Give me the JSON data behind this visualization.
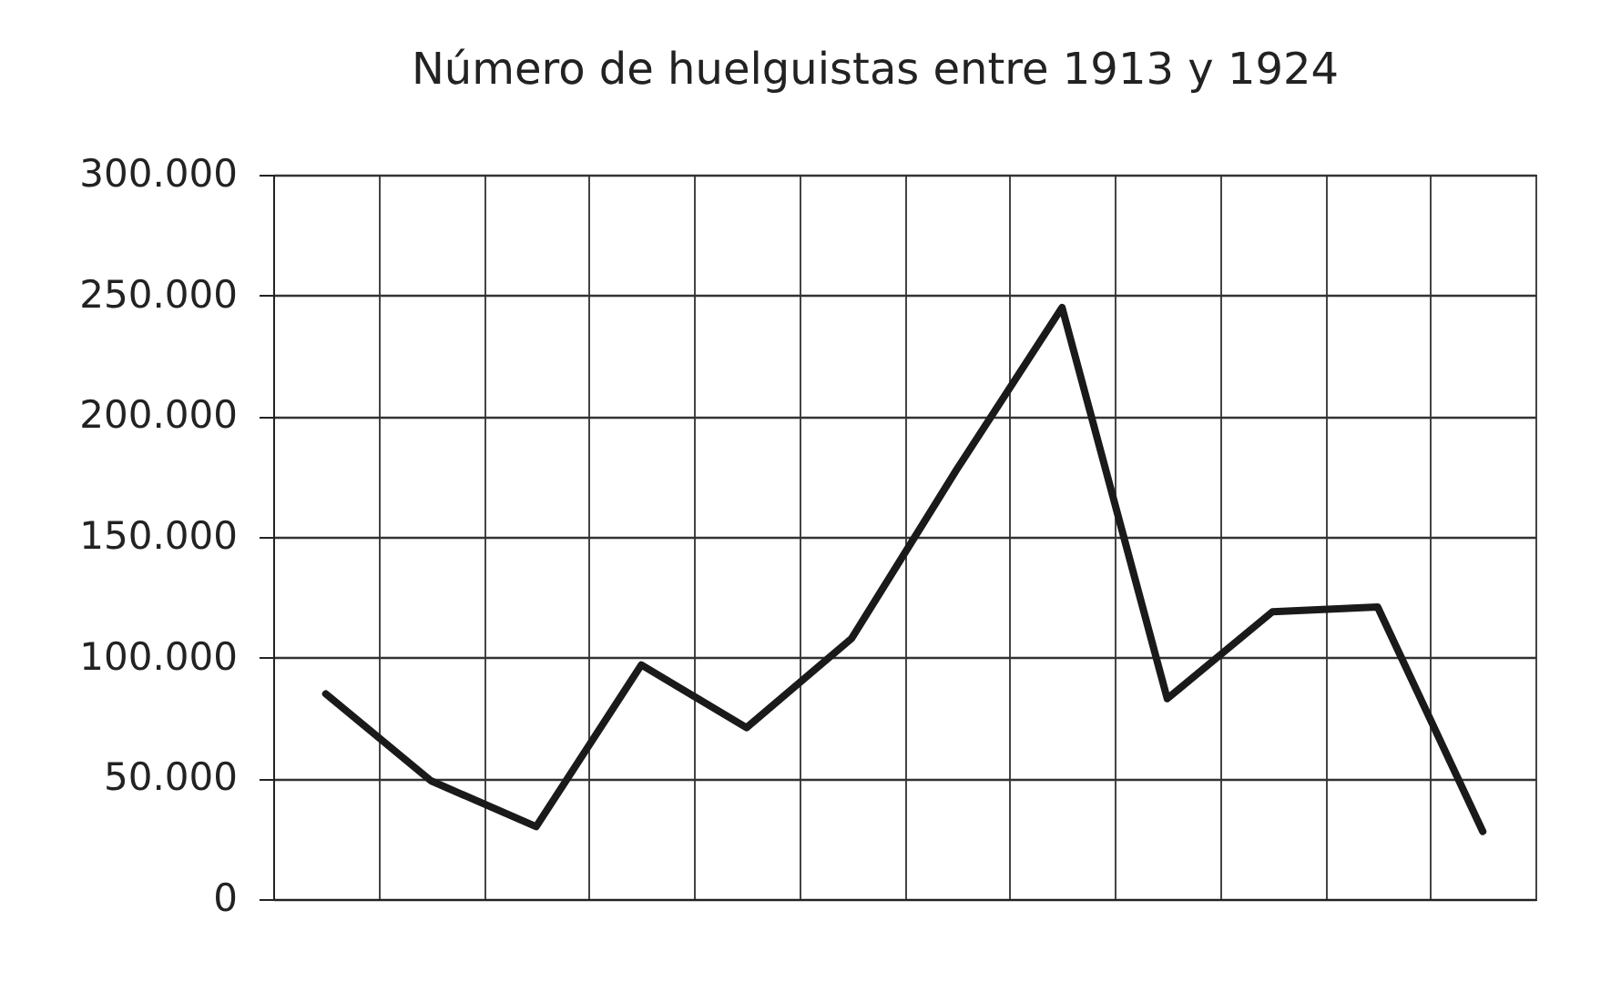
{
  "chart_data": {
    "type": "line",
    "title": "Número de huelguistas entre 1913 y 1924",
    "categories": [
      null,
      null,
      null,
      null,
      null,
      null,
      null,
      null,
      null,
      null,
      null,
      null
    ],
    "series": [
      {
        "color": "#1a1a1a",
        "values": [
          85000,
          49000,
          30000,
          97000,
          71000,
          108000,
          178000,
          245000,
          83000,
          119000,
          121000,
          28000
        ]
      }
    ],
    "ylim": [
      0,
      300000
    ],
    "yticks": [
      0,
      {
        "value": 50000,
        "label": "50.000"
      },
      {
        "value": 100000,
        "label": "100.000"
      },
      {
        "value": 150000,
        "label": "150.000"
      },
      {
        "value": 200000,
        "label": "200.000"
      },
      {
        "value": 250000,
        "label": "250.000"
      },
      {
        "value": 300000,
        "label": "300.000"
      }
    ],
    "grid": true,
    "tick_labels": "y"
  }
}
